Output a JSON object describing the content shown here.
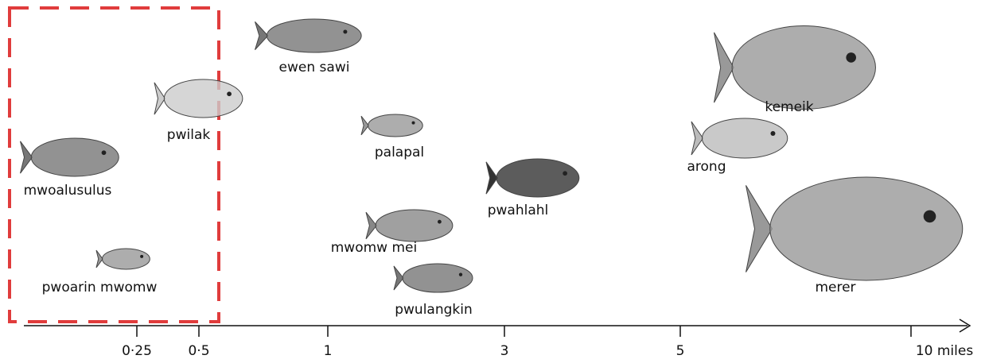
{
  "fish": [
    {
      "label": "mwoalusulus"
    },
    {
      "label": "pwoarin mwomw"
    },
    {
      "label": "pwilak"
    },
    {
      "label": "ewen sawi"
    },
    {
      "label": "palapal"
    },
    {
      "label": "mwomw mei"
    },
    {
      "label": "pwulangkin"
    },
    {
      "label": "pwahlahl"
    },
    {
      "label": "arong"
    },
    {
      "label": "kemeik"
    },
    {
      "label": "merer"
    }
  ],
  "axis": {
    "ticks": [
      "0·25",
      "0·5",
      "1",
      "3",
      "5",
      "10 miles"
    ]
  }
}
